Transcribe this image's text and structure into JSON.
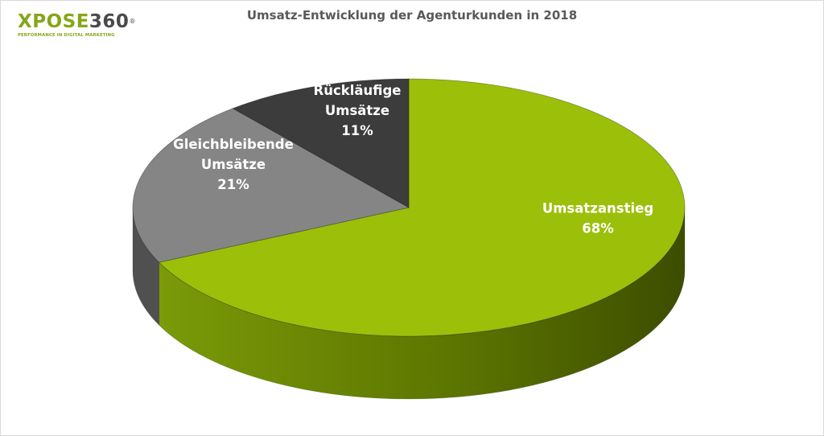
{
  "logo": {
    "brand": "XPOSE",
    "number": "360",
    "registered": "®",
    "tagline": "PERFORMANCE IN DIGITAL MARKETING"
  },
  "chart_data": {
    "type": "pie",
    "title": "Umsatz-Entwicklung der Agenturkunden in 2018",
    "slices": [
      {
        "label": "Umsatzanstieg",
        "value": 68,
        "value_label": "68%",
        "color": "#9cbf0a",
        "side_color": "#4f6400",
        "label_color": "#ffffff"
      },
      {
        "label": "Gleichbleibende Umsätze",
        "label_lines": [
          "Gleichbleibende",
          "Umsätze"
        ],
        "value": 21,
        "value_label": "21%",
        "color": "#858585",
        "side_color": "#505050",
        "label_color": "#ffffff"
      },
      {
        "label": "Rückläufige Umsätze",
        "label_lines": [
          "Rückläufige",
          "Umsätze"
        ],
        "value": 11,
        "value_label": "11%",
        "color": "#3c3c3c",
        "side_color": "#262626",
        "label_color": "#ffffff"
      }
    ],
    "style": "3d"
  }
}
